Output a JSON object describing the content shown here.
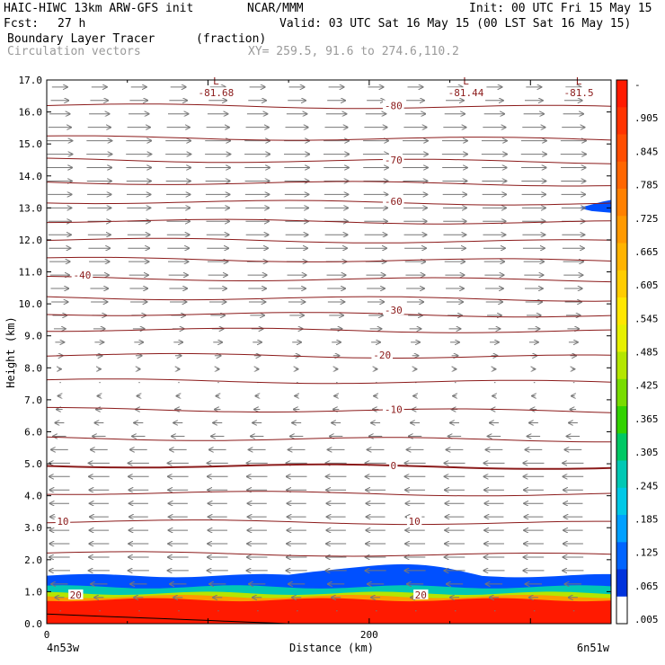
{
  "header": {
    "model_line": "HAIC-HIWC 13km ARW-GFS init",
    "org": "NCAR/MMM",
    "init": "Init: 00 UTC Fri 15 May 15",
    "fcst_label": "Fcst:",
    "fcst_value": "27 h",
    "valid": "Valid: 03 UTC Sat 16 May 15 (00 LST Sat 16 May 15)",
    "field": "Boundary Layer Tracer",
    "field_units": "(fraction)",
    "vectors": "Circulation vectors",
    "xy": "XY= 259.5, 91.6 to 274.6,110.2"
  },
  "chart_data": {
    "type": "heatmap",
    "xlabel": "Distance (km)",
    "ylabel": "Height (km)",
    "xlim": [
      0,
      350
    ],
    "ylim": [
      0,
      17
    ],
    "x_ticks": [
      {
        "value": 0,
        "label": "0"
      },
      {
        "value": 200,
        "label": "200"
      }
    ],
    "x_end_labels": {
      "left": "4n53w",
      "right": "6n51w"
    },
    "y_ticks": [
      "0.0",
      "1.0",
      "2.0",
      "3.0",
      "4.0",
      "5.0",
      "6.0",
      "7.0",
      "8.0",
      "9.0",
      "10.0",
      "11.0",
      "12.0",
      "13.0",
      "14.0",
      "15.0",
      "16.0",
      "17.0"
    ],
    "colorbar": {
      "labels": [
        "-",
        ".905",
        ".845",
        ".785",
        ".725",
        ".665",
        ".605",
        ".545",
        ".485",
        ".425",
        ".365",
        ".305",
        ".245",
        ".185",
        ".125",
        ".065",
        ".005"
      ],
      "colors": [
        "#ff1a00",
        "#ff3300",
        "#ff4d00",
        "#ff6600",
        "#ff8000",
        "#ff9900",
        "#ffb300",
        "#ffcc00",
        "#ffe600",
        "#e6f000",
        "#b4e600",
        "#78dc00",
        "#32d200",
        "#00c864",
        "#00c8b4",
        "#00c8e6",
        "#00a0ff",
        "#0064ff",
        "#0032dc",
        "#ffffff"
      ]
    },
    "temperature_contours": [
      {
        "label": "-81.68",
        "marker": "L",
        "x_km": 105,
        "height_km": 16.6
      },
      {
        "label": "-81.44",
        "marker": "L",
        "x_km": 260,
        "height_km": 16.6
      },
      {
        "label": "-81.5",
        "marker": "L",
        "x_km": 330,
        "height_km": 16.6
      },
      {
        "label": "-80",
        "x_km": 215,
        "height_km": 16.2
      },
      {
        "label": "-70",
        "x_km": 215,
        "height_km": 14.5
      },
      {
        "label": "-60",
        "x_km": 215,
        "height_km": 13.2
      },
      {
        "label": "-40",
        "x_km": 22,
        "height_km": 10.9
      },
      {
        "label": "-30",
        "x_km": 215,
        "height_km": 9.8
      },
      {
        "label": "-20",
        "x_km": 208,
        "height_km": 8.4
      },
      {
        "label": "-10",
        "x_km": 215,
        "height_km": 6.7
      },
      {
        "label": "0",
        "x_km": 215,
        "height_km": 4.95
      },
      {
        "label": "10",
        "x_km": 10,
        "height_km": 3.2
      },
      {
        "label": "10",
        "x_km": 228,
        "height_km": 3.2
      },
      {
        "label": "20",
        "x_km": 18,
        "height_km": 0.9
      },
      {
        "label": "20",
        "x_km": 232,
        "height_km": 0.9
      }
    ],
    "contour_heights_km": [
      16.2,
      15.2,
      14.5,
      13.8,
      13.2,
      12.6,
      12.0,
      11.4,
      10.8,
      10.2,
      9.7,
      9.2,
      8.4,
      7.6,
      6.7,
      5.8,
      4.95,
      4.1,
      3.2,
      2.2
    ],
    "tracer_layers_km": [
      {
        "level": 0.005,
        "top": 1.5
      },
      {
        "level": 0.125,
        "top": 1.15
      },
      {
        "level": 0.305,
        "top": 0.95
      },
      {
        "level": 0.545,
        "top": 0.85
      },
      {
        "level": 0.905,
        "top": 0.75
      }
    ],
    "wind_profile": [
      {
        "z": 0.3,
        "u": 0.0
      },
      {
        "z": 1.5,
        "u": -0.9
      },
      {
        "z": 3.5,
        "u": -0.8
      },
      {
        "z": 5.0,
        "u": -0.9
      },
      {
        "z": 6.5,
        "u": -0.3
      },
      {
        "z": 7.5,
        "u": -0.05
      },
      {
        "z": 8.5,
        "u": 0.3
      },
      {
        "z": 10.0,
        "u": 0.7
      },
      {
        "z": 12.0,
        "u": 0.95
      },
      {
        "z": 15.0,
        "u": 1.1
      },
      {
        "z": 17.0,
        "u": 0.6
      }
    ]
  }
}
